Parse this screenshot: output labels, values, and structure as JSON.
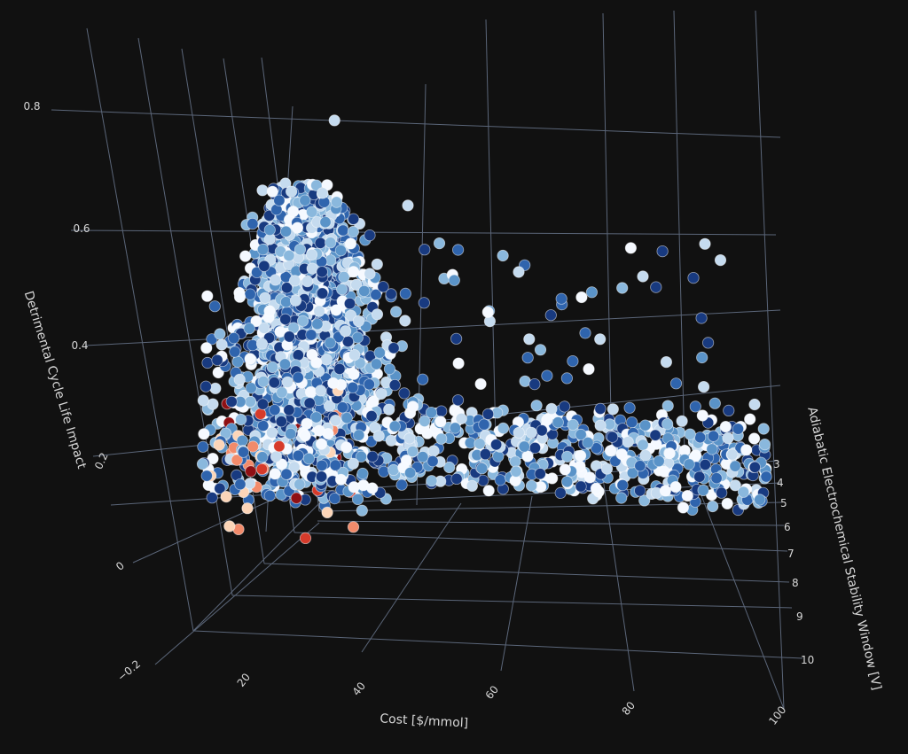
{
  "chart_data": {
    "type": "scatter",
    "dimensions": "3d",
    "background": "#111111",
    "grid": true,
    "axes": {
      "x": {
        "label": "Cost [$/mmol]",
        "range": [
          0,
          100
        ],
        "ticks": [
          "20",
          "40",
          "60",
          "80",
          "100"
        ],
        "tick_values": [
          20,
          40,
          60,
          80,
          100
        ]
      },
      "y": {
        "label": "Adiabatic Electrochemical Stability Window [V]",
        "range": [
          2.5,
          10.5
        ],
        "ticks": [
          "3",
          "4",
          "5",
          "6",
          "7",
          "8",
          "9",
          "10"
        ],
        "tick_values": [
          3,
          4,
          5,
          6,
          7,
          8,
          9,
          10
        ]
      },
      "z": {
        "label": "Detrimental Cycle Life Impact",
        "range": [
          -0.25,
          0.9
        ],
        "ticks": [
          "−0.2",
          "0",
          "0.2",
          "0.4",
          "0.6",
          "0.8"
        ],
        "tick_values": [
          -0.2,
          0,
          0.2,
          0.4,
          0.6,
          0.8
        ]
      }
    },
    "colorscale": {
      "negative": [
        "#fcd5b8",
        "#f28b6b",
        "#d63b2b",
        "#8f1014"
      ],
      "positive": [
        "#f5f9ff",
        "#c5dbef",
        "#8ab8dd",
        "#5a93c8",
        "#2f64ad",
        "#183a80"
      ]
    },
    "cluster": {
      "approx_points": 2500,
      "main_body": {
        "x_range": [
          10,
          45
        ],
        "y_center": 4.0,
        "z_range": [
          0.1,
          0.75
        ]
      },
      "tail": {
        "x_range": [
          45,
          100
        ],
        "y_range": [
          3,
          4
        ],
        "z_range": [
          0.1,
          0.3
        ]
      },
      "outliers": [
        {
          "x": 90,
          "y": 3.0,
          "z": 0.62
        },
        {
          "x": 80,
          "y": 3.0,
          "z": 0.55
        },
        {
          "x": 98,
          "y": 3.0,
          "z": 0.3
        },
        {
          "x": 30,
          "y": 3.2,
          "z": 0.85
        },
        {
          "x": 42,
          "y": 3.1,
          "z": 0.68
        },
        {
          "x": 60,
          "y": 3.0,
          "z": 0.55
        }
      ],
      "red_group": {
        "x_range": [
          8,
          32
        ],
        "y_range": [
          3.5,
          4.7
        ],
        "z_range": [
          0.05,
          0.32
        ]
      }
    }
  }
}
